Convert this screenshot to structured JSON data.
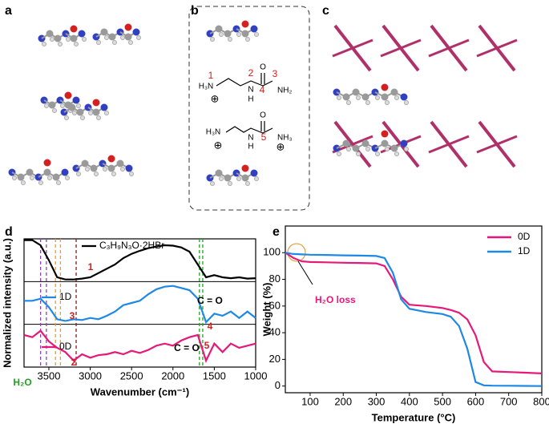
{
  "panel_labels": [
    "a",
    "b",
    "c",
    "d",
    "e"
  ],
  "structure_b": {
    "numbers": [
      "1",
      "2",
      "3",
      "4",
      "5"
    ],
    "atoms": [
      "H₃N",
      "N",
      "H",
      "O",
      "NH₂",
      "H₃N",
      "N",
      "H",
      "O",
      "NH₃"
    ],
    "charges": [
      "⊕",
      "⊕",
      "⊕"
    ]
  },
  "chart_data": [
    {
      "type": "line",
      "x_label": "Wavenumber (cm⁻¹)",
      "y_label": "Normalized intensity (a.u.)",
      "xlim": [
        3800,
        1000
      ],
      "ylim": [
        0,
        3
      ],
      "xticks": [
        3500,
        3000,
        2500,
        2000,
        1500,
        1000
      ],
      "panel_dividers": [
        1,
        2
      ],
      "x": [
        3800,
        3700,
        3600,
        3500,
        3400,
        3300,
        3200,
        3100,
        3000,
        2900,
        2800,
        2700,
        2600,
        2500,
        2400,
        2300,
        2200,
        2100,
        2000,
        1900,
        1800,
        1700,
        1600,
        1500,
        1400,
        1300,
        1200,
        1100,
        1000
      ],
      "series": [
        {
          "name": "C₃H₉N₃O·2HBr",
          "color": "#000000",
          "values": [
            2.97,
            2.97,
            2.85,
            2.5,
            2.1,
            2.05,
            2.05,
            2.07,
            2.1,
            2.2,
            2.3,
            2.4,
            2.55,
            2.65,
            2.72,
            2.78,
            2.82,
            2.85,
            2.84,
            2.8,
            2.7,
            2.4,
            2.1,
            2.15,
            2.1,
            2.08,
            2.1,
            2.07,
            2.08
          ]
        },
        {
          "name": "1D",
          "color": "#1e88e5",
          "values": [
            1.55,
            1.55,
            1.6,
            1.4,
            1.12,
            1.08,
            1.12,
            1.1,
            1.15,
            1.12,
            1.2,
            1.3,
            1.45,
            1.5,
            1.55,
            1.7,
            1.82,
            1.88,
            1.9,
            1.85,
            1.8,
            1.6,
            1.05,
            1.25,
            1.2,
            1.3,
            1.15,
            1.3,
            1.15
          ]
        },
        {
          "name": "0D",
          "color": "#e6197a",
          "values": [
            0.75,
            0.7,
            0.85,
            0.6,
            0.45,
            0.35,
            0.15,
            0.3,
            0.22,
            0.28,
            0.3,
            0.35,
            0.3,
            0.38,
            0.33,
            0.4,
            0.5,
            0.55,
            0.5,
            0.62,
            0.7,
            0.75,
            0.15,
            0.55,
            0.35,
            0.55,
            0.45,
            0.5,
            0.55
          ]
        }
      ],
      "reference_lines": [
        {
          "x": 3600,
          "color": "#8e44ad"
        },
        {
          "x": 3530,
          "color": "#8e44ad"
        },
        {
          "x": 3420,
          "color": "#f39c12"
        },
        {
          "x": 3360,
          "color": "#f39c12"
        },
        {
          "x": 3170,
          "color": "#8b1a1a"
        },
        {
          "x": 1680,
          "color": "#22a022"
        },
        {
          "x": 1640,
          "color": "#22a022"
        }
      ],
      "annotations": [
        "1",
        "2",
        "3",
        "4",
        "5",
        "C = O",
        "C = O",
        "H₂O"
      ]
    },
    {
      "type": "line",
      "x_label": "Temperature (°C)",
      "y_label": "Weight (%)",
      "xlim": [
        25,
        800
      ],
      "ylim": [
        -5,
        120
      ],
      "xticks": [
        100,
        200,
        300,
        400,
        500,
        600,
        700,
        800
      ],
      "yticks": [
        0,
        20,
        40,
        60,
        80,
        100
      ],
      "legend": "upper right",
      "x": [
        25,
        50,
        75,
        100,
        150,
        200,
        250,
        300,
        325,
        350,
        375,
        400,
        450,
        500,
        525,
        550,
        575,
        600,
        625,
        650,
        700,
        750,
        800
      ],
      "series": [
        {
          "name": "0D",
          "color": "#e6197a",
          "values": [
            100,
            96,
            93.5,
            93,
            92.8,
            92.5,
            92.3,
            92,
            90,
            80,
            67,
            61,
            60,
            58.5,
            57,
            55,
            50,
            38,
            18,
            11,
            10.5,
            10,
            9.5
          ]
        },
        {
          "name": "1D",
          "color": "#1e88e5",
          "values": [
            100,
            99,
            98.7,
            98.5,
            98.3,
            98,
            97.8,
            97.5,
            96,
            85,
            65,
            58,
            55.5,
            54,
            52,
            45,
            28,
            3,
            0.5,
            0.3,
            0.2,
            0.1,
            0
          ]
        }
      ],
      "annotations": [
        "H₂O  loss"
      ]
    }
  ]
}
